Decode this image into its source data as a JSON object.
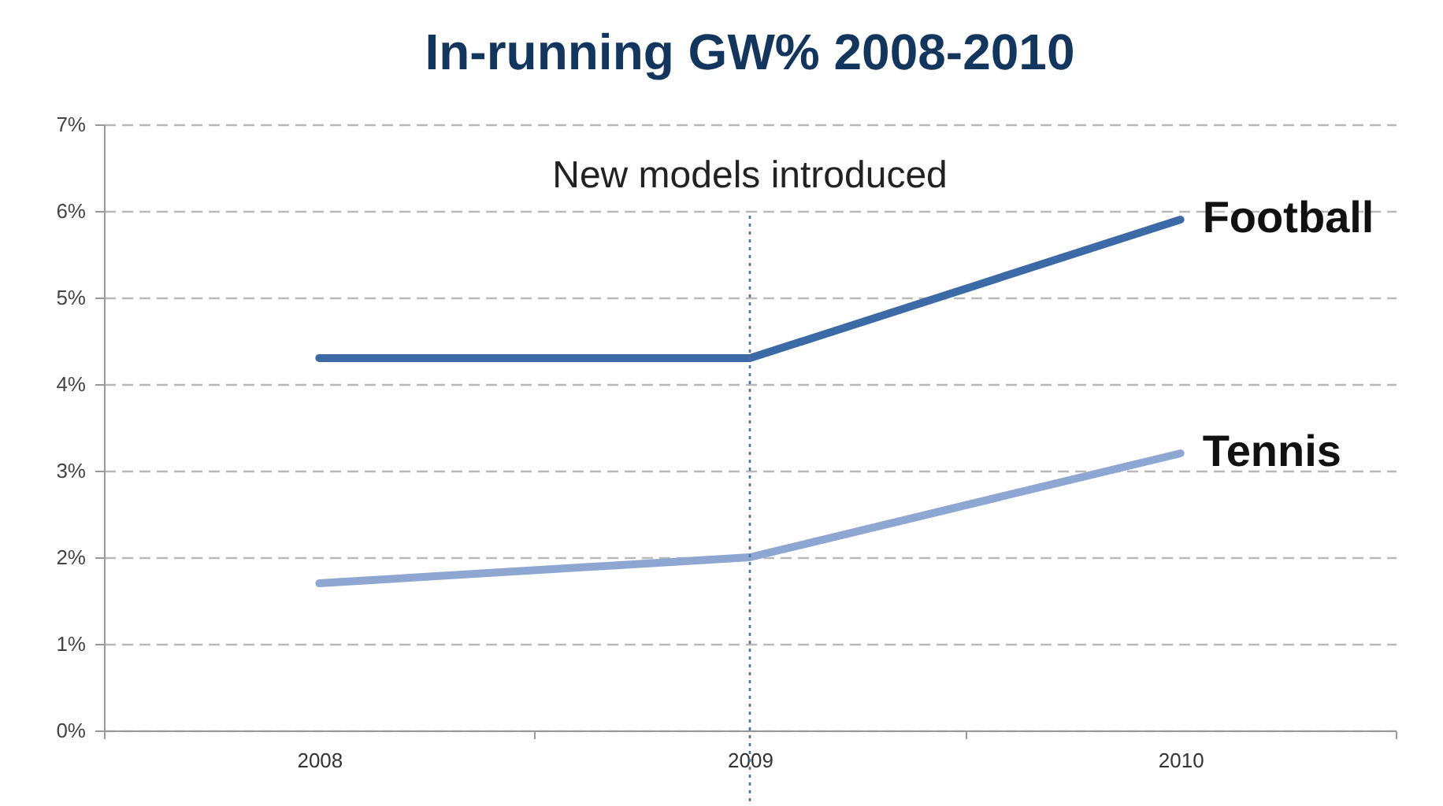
{
  "chart_data": {
    "type": "line",
    "title": "In-running GW% 2008-2010",
    "categories": [
      "2008",
      "2009",
      "2010"
    ],
    "series": [
      {
        "name": "Football",
        "color": "#3b6aa6",
        "values": [
          4.3,
          4.3,
          5.9
        ]
      },
      {
        "name": "Tennis",
        "color": "#8ea6d2",
        "values": [
          1.7,
          2.0,
          3.2
        ]
      }
    ],
    "ylim": [
      0,
      7
    ],
    "yticks": [
      {
        "value": 0,
        "label": "0%"
      },
      {
        "value": 1,
        "label": "1%"
      },
      {
        "value": 2,
        "label": "2%"
      },
      {
        "value": 3,
        "label": "3%"
      },
      {
        "value": 4,
        "label": "4%"
      },
      {
        "value": 5,
        "label": "5%"
      },
      {
        "value": 6,
        "label": "6%"
      },
      {
        "value": 7,
        "label": "7%"
      }
    ],
    "grid": "y",
    "line_style": "solid",
    "ref_lines": [
      {
        "axis": "x",
        "value": "2009",
        "label": "New models introduced",
        "color": "#4a72a8",
        "line_style": "dotted"
      }
    ]
  }
}
